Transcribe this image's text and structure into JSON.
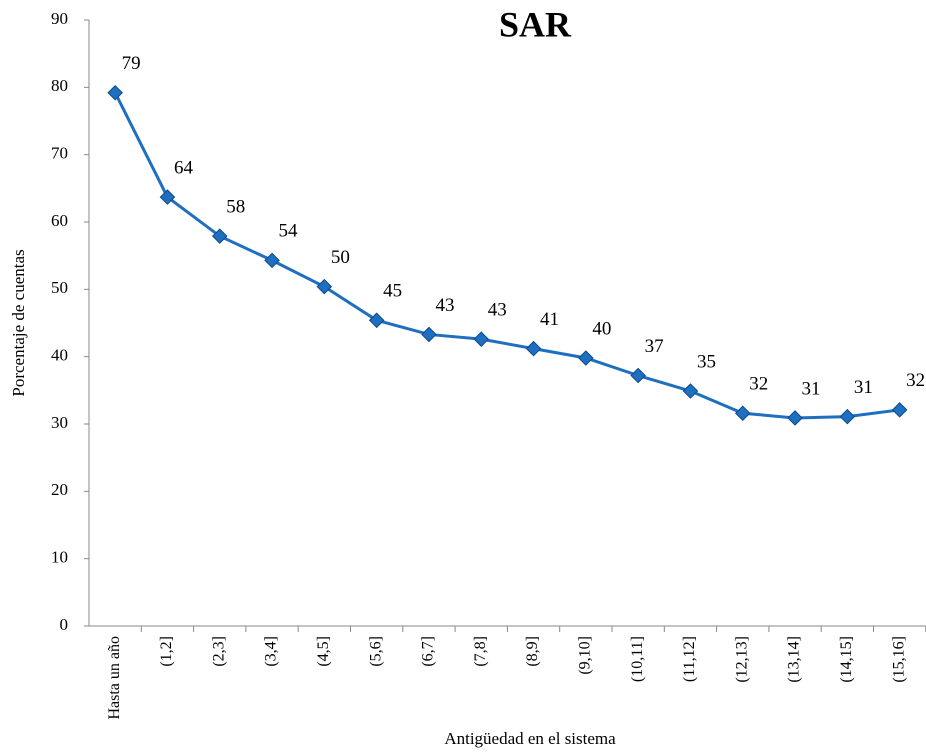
{
  "chart_data": {
    "type": "line",
    "title": "SAR",
    "x_label": "Antigüedad en el sistema",
    "y_label": "Porcentaje de cuentas",
    "categories": [
      "Hasta un año",
      "(1,2]",
      "(2,3]",
      "(3,4]",
      "(4,5]",
      "(5,6]",
      "(6,7]",
      "(7,8]",
      "(8,9]",
      "(9,10]",
      "(10,11]",
      "(11,12]",
      "(12,13]",
      "(13,14]",
      "(14,15]",
      "(15,16]"
    ],
    "series": [
      {
        "name": "SAR",
        "color": "#1f6fc0",
        "values": [
          79.2,
          63.7,
          57.9,
          54.3,
          50.4,
          45.4,
          43.3,
          42.6,
          41.2,
          39.8,
          37.2,
          34.9,
          31.6,
          30.9,
          31.1,
          32.1
        ],
        "value_labels": [
          "79",
          "64",
          "58",
          "54",
          "50",
          "45",
          "43",
          "43",
          "41",
          "40",
          "37",
          "35",
          "32",
          "31",
          "31",
          "32"
        ]
      }
    ],
    "ylim": [
      0,
      90
    ],
    "yticks": [
      0,
      10,
      20,
      30,
      40,
      50,
      60,
      70,
      80,
      90
    ],
    "grid": false
  }
}
